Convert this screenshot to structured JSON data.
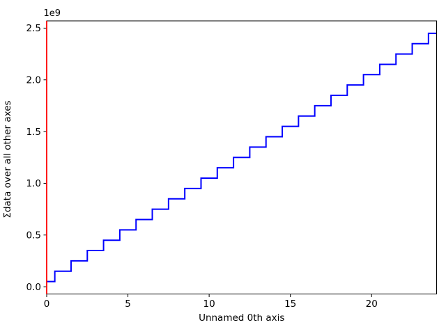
{
  "figure": {
    "background": "#ffffff",
    "plot_background": "#ffffff",
    "spine_color": "#000000"
  },
  "chart_data": {
    "type": "line",
    "drawstyle": "steps-mid",
    "title": "",
    "xlabel": "Unnamed 0th axis",
    "ylabel": "Σdata over all other axes",
    "offset_text": "1e9",
    "line_color": "#0000ff",
    "line_width": 2,
    "grid": false,
    "legend": null,
    "xlim": [
      0,
      24
    ],
    "ylim": [
      -70000000,
      2570000000
    ],
    "xticks": {
      "values": [
        0,
        5,
        10,
        15,
        20
      ],
      "labels": [
        "0",
        "5",
        "10",
        "15",
        "20"
      ]
    },
    "yticks": {
      "values": [
        0,
        500000000,
        1000000000,
        1500000000,
        2000000000,
        2500000000
      ],
      "labels": [
        "0.0",
        "0.5",
        "1.0",
        "1.5",
        "2.0",
        "2.5"
      ]
    },
    "x": [
      0,
      1,
      2,
      3,
      4,
      5,
      6,
      7,
      8,
      9,
      10,
      11,
      12,
      13,
      14,
      15,
      16,
      17,
      18,
      19,
      20,
      21,
      22,
      23,
      24
    ],
    "values": [
      49995000,
      149995000,
      249995000,
      349995000,
      449995000,
      549995000,
      649995000,
      749995000,
      849995000,
      949995000,
      1049995000,
      1149995000,
      1249995000,
      1349995000,
      1449995000,
      1549995000,
      1649995000,
      1749995000,
      1849995000,
      1949995000,
      2049995000,
      2149995000,
      2249995000,
      2349995000,
      2449995000
    ],
    "cursor_line": {
      "x": 0,
      "color": "#ff0000",
      "width": 1.8
    }
  }
}
